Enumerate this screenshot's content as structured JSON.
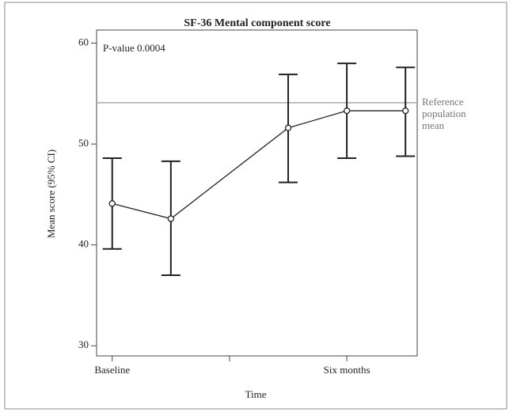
{
  "chart_data": {
    "type": "line",
    "title": "SF-36 Mental component score",
    "x_label": "Time",
    "y_label": "Mean score (95% CI)",
    "annotation": "P-value 0.0004",
    "x": [
      0,
      1.5,
      4.5,
      6,
      7.5
    ],
    "series": [
      {
        "name": null,
        "color": "#222222",
        "values": [
          44.1,
          42.6,
          51.6,
          53.3,
          53.3
        ],
        "ci_low": [
          39.6,
          37.0,
          46.2,
          48.6,
          48.8
        ],
        "ci_high": [
          48.6,
          48.3,
          56.9,
          58.0,
          57.6
        ]
      }
    ],
    "reference_line": {
      "value": 54.1,
      "color": "#aaaaaa",
      "label": [
        "Reference",
        "population",
        "mean"
      ]
    },
    "xlim": [
      -0.4,
      7.8
    ],
    "xticks": [
      {
        "value": 0,
        "label": "Baseline"
      },
      {
        "value": 3,
        "label": null
      },
      {
        "value": 6,
        "label": "Six months"
      }
    ],
    "ylim": [
      29.0,
      61.3
    ],
    "yticks": [
      30,
      40,
      50,
      60
    ]
  }
}
